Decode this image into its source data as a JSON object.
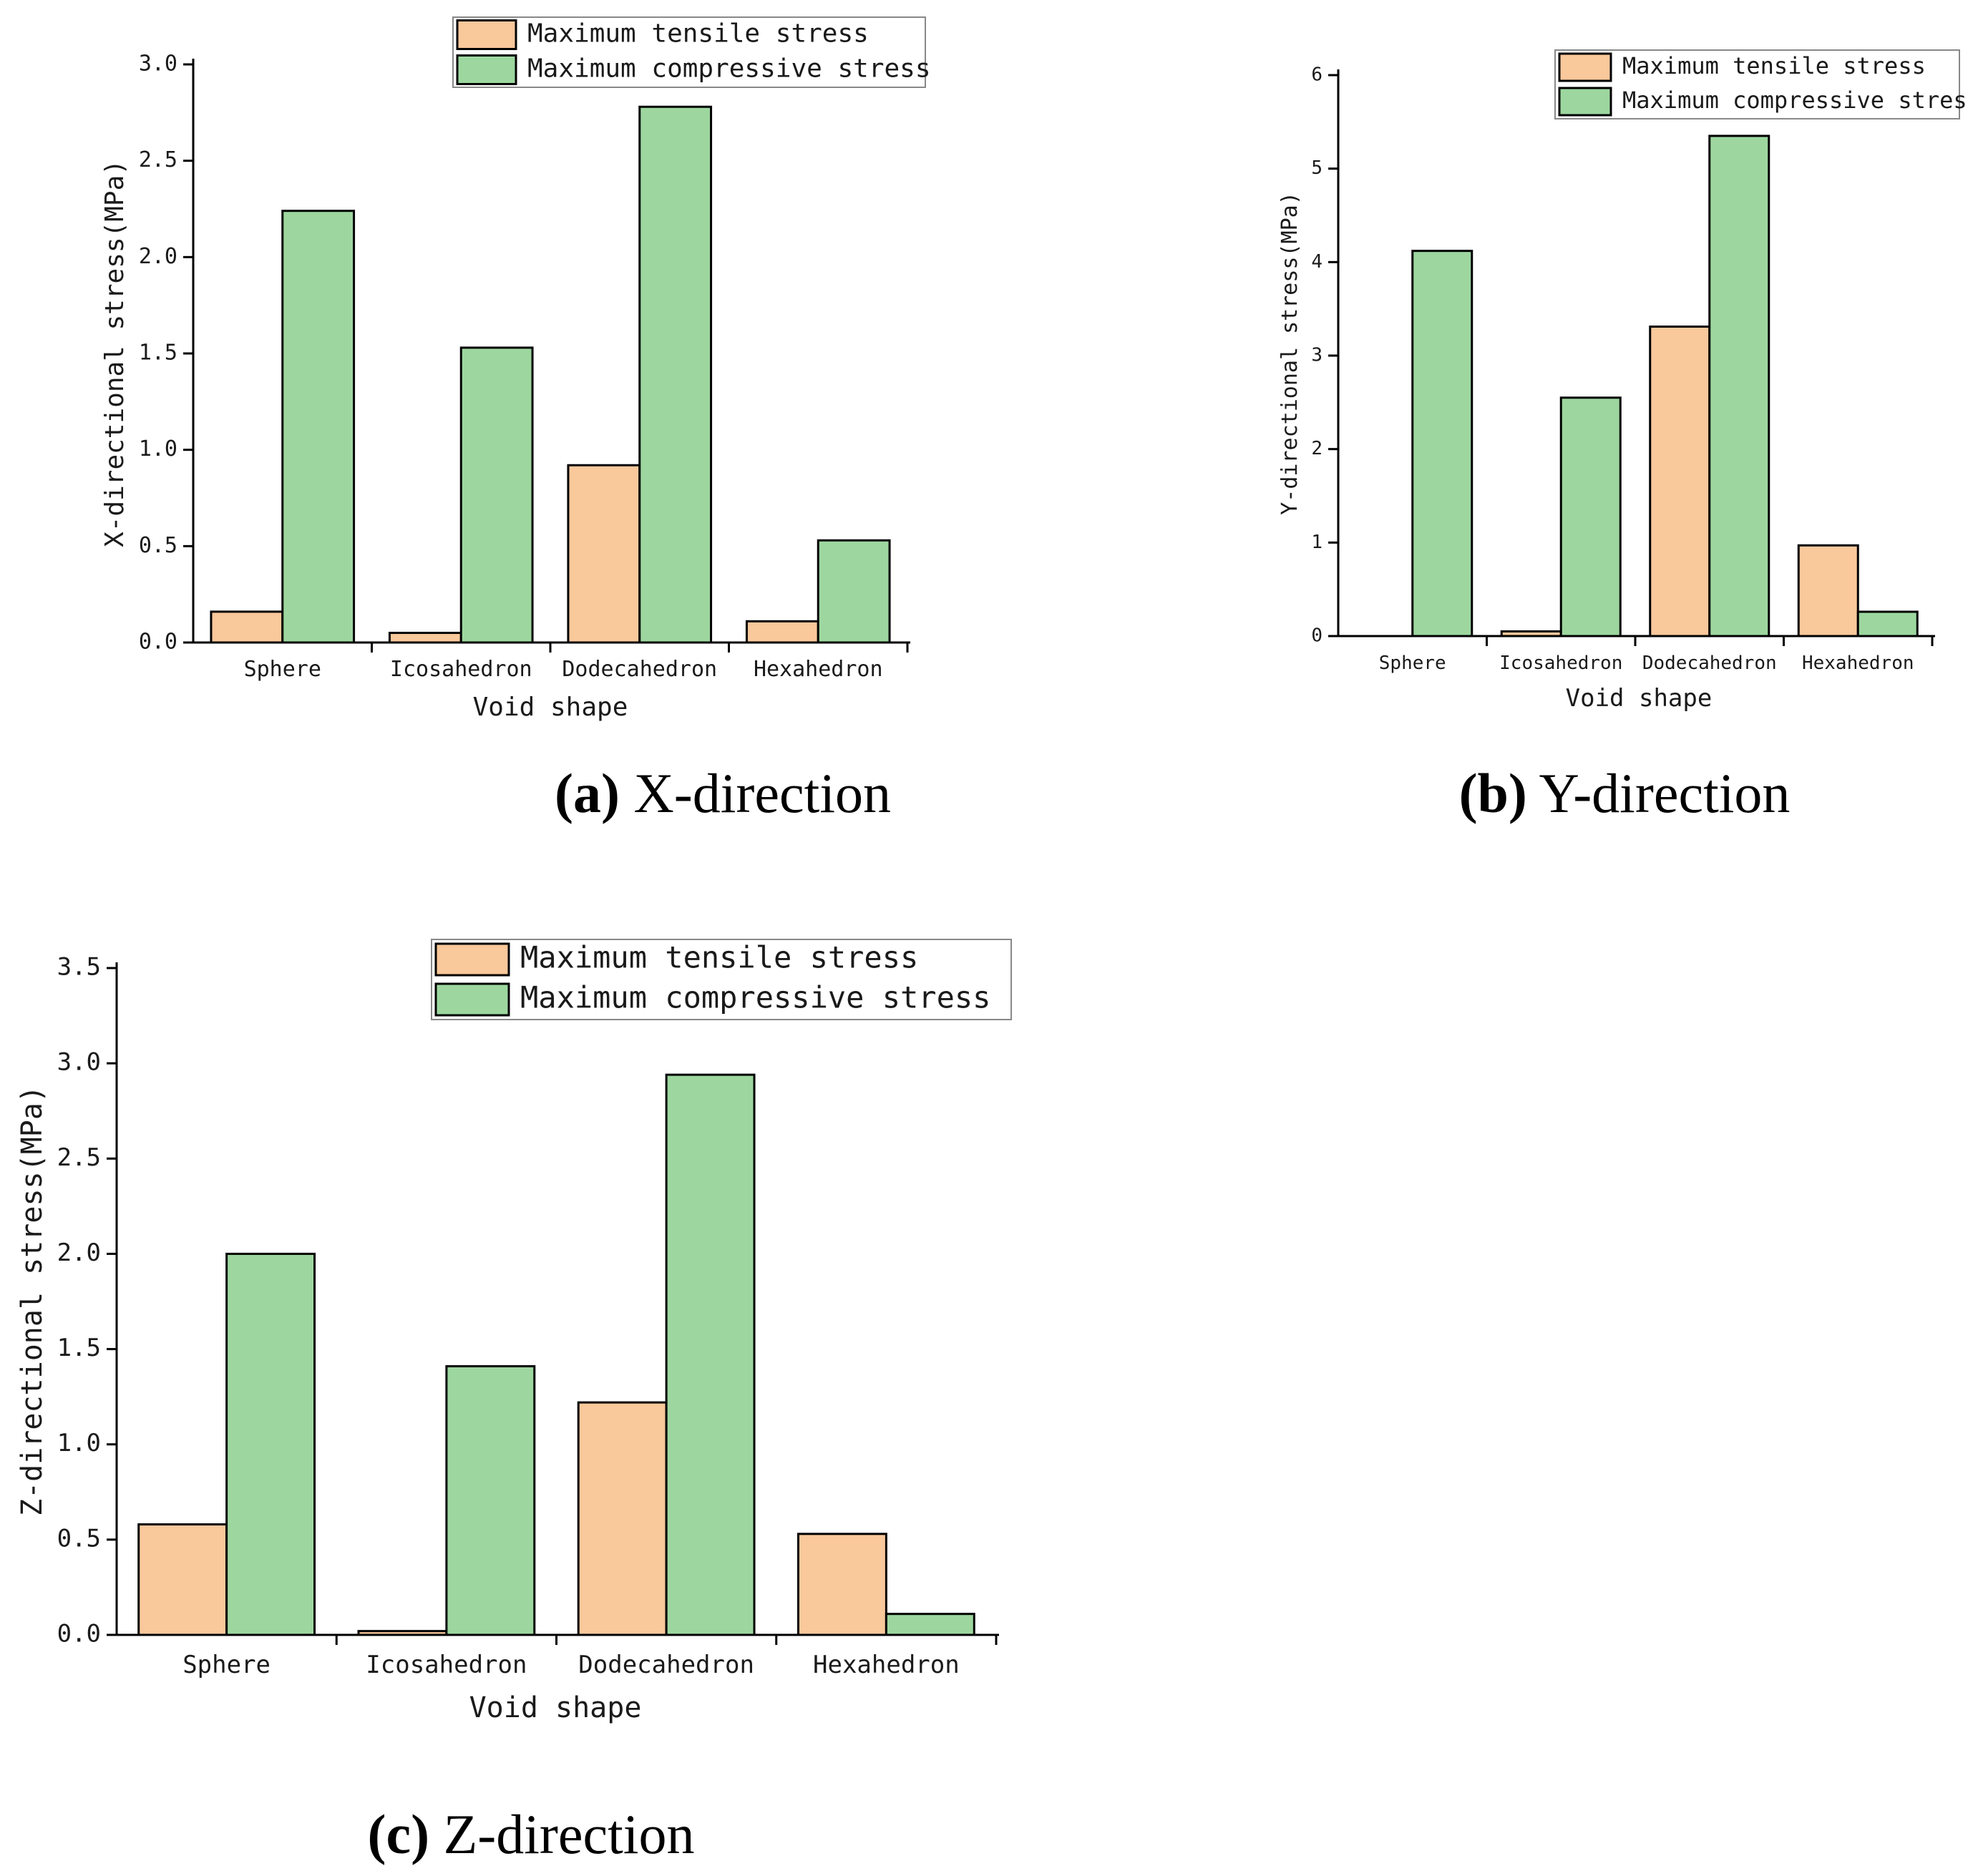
{
  "chart_data": [
    {
      "type": "bar",
      "title": "",
      "caption_label": "(a)",
      "caption_text": " X-direction",
      "xlabel": "Void shape",
      "ylabel": "X-directional stress(MPa)",
      "categories": [
        "Sphere",
        "Icosahedron",
        "Dodecahedron",
        "Hexahedron"
      ],
      "ylim": [
        0,
        3.0
      ],
      "yticks": [
        "0.0",
        "0.5",
        "1.0",
        "1.5",
        "2.0",
        "2.5",
        "3.0"
      ],
      "series": [
        {
          "name": "Maximum tensile stress",
          "color": "#F9C89B",
          "values": [
            0.16,
            0.05,
            0.92,
            0.11
          ]
        },
        {
          "name": "Maximum compressive stress",
          "color": "#9DD79F",
          "values": [
            2.24,
            1.53,
            2.78,
            0.53
          ]
        }
      ],
      "legend": "top-right"
    },
    {
      "type": "bar",
      "title": "",
      "caption_label": "(b)",
      "caption_text": " Y-direction",
      "xlabel": "Void shape",
      "ylabel": "Y-directional stress(MPa)",
      "categories": [
        "Sphere",
        "Icosahedron",
        "Dodecahedron",
        "Hexahedron"
      ],
      "ylim": [
        0,
        6
      ],
      "yticks": [
        "0",
        "1",
        "2",
        "3",
        "4",
        "5",
        "6"
      ],
      "series": [
        {
          "name": "Maximum tensile stress",
          "color": "#F9C89B",
          "values": [
            0.0,
            0.05,
            3.31,
            0.97
          ]
        },
        {
          "name": "Maximum compressive stress",
          "color": "#9DD79F",
          "values": [
            4.12,
            2.55,
            5.35,
            0.26
          ]
        }
      ],
      "legend": "top-right"
    },
    {
      "type": "bar",
      "title": "",
      "caption_label": "(c)",
      "caption_text": " Z-direction",
      "xlabel": "Void shape",
      "ylabel": "Z-directional stress(MPa)",
      "categories": [
        "Sphere",
        "Icosahedron",
        "Dodecahedron",
        "Hexahedron"
      ],
      "ylim": [
        0,
        3.5
      ],
      "yticks": [
        "0.0",
        "0.5",
        "1.0",
        "1.5",
        "2.0",
        "2.5",
        "3.0",
        "3.5"
      ],
      "series": [
        {
          "name": "Maximum tensile stress",
          "color": "#F9C89B",
          "values": [
            0.58,
            0.02,
            1.22,
            0.53
          ]
        },
        {
          "name": "Maximum compressive stress",
          "color": "#9DD79F",
          "values": [
            2.0,
            1.41,
            2.94,
            0.11
          ]
        }
      ],
      "legend": "top-center"
    }
  ]
}
